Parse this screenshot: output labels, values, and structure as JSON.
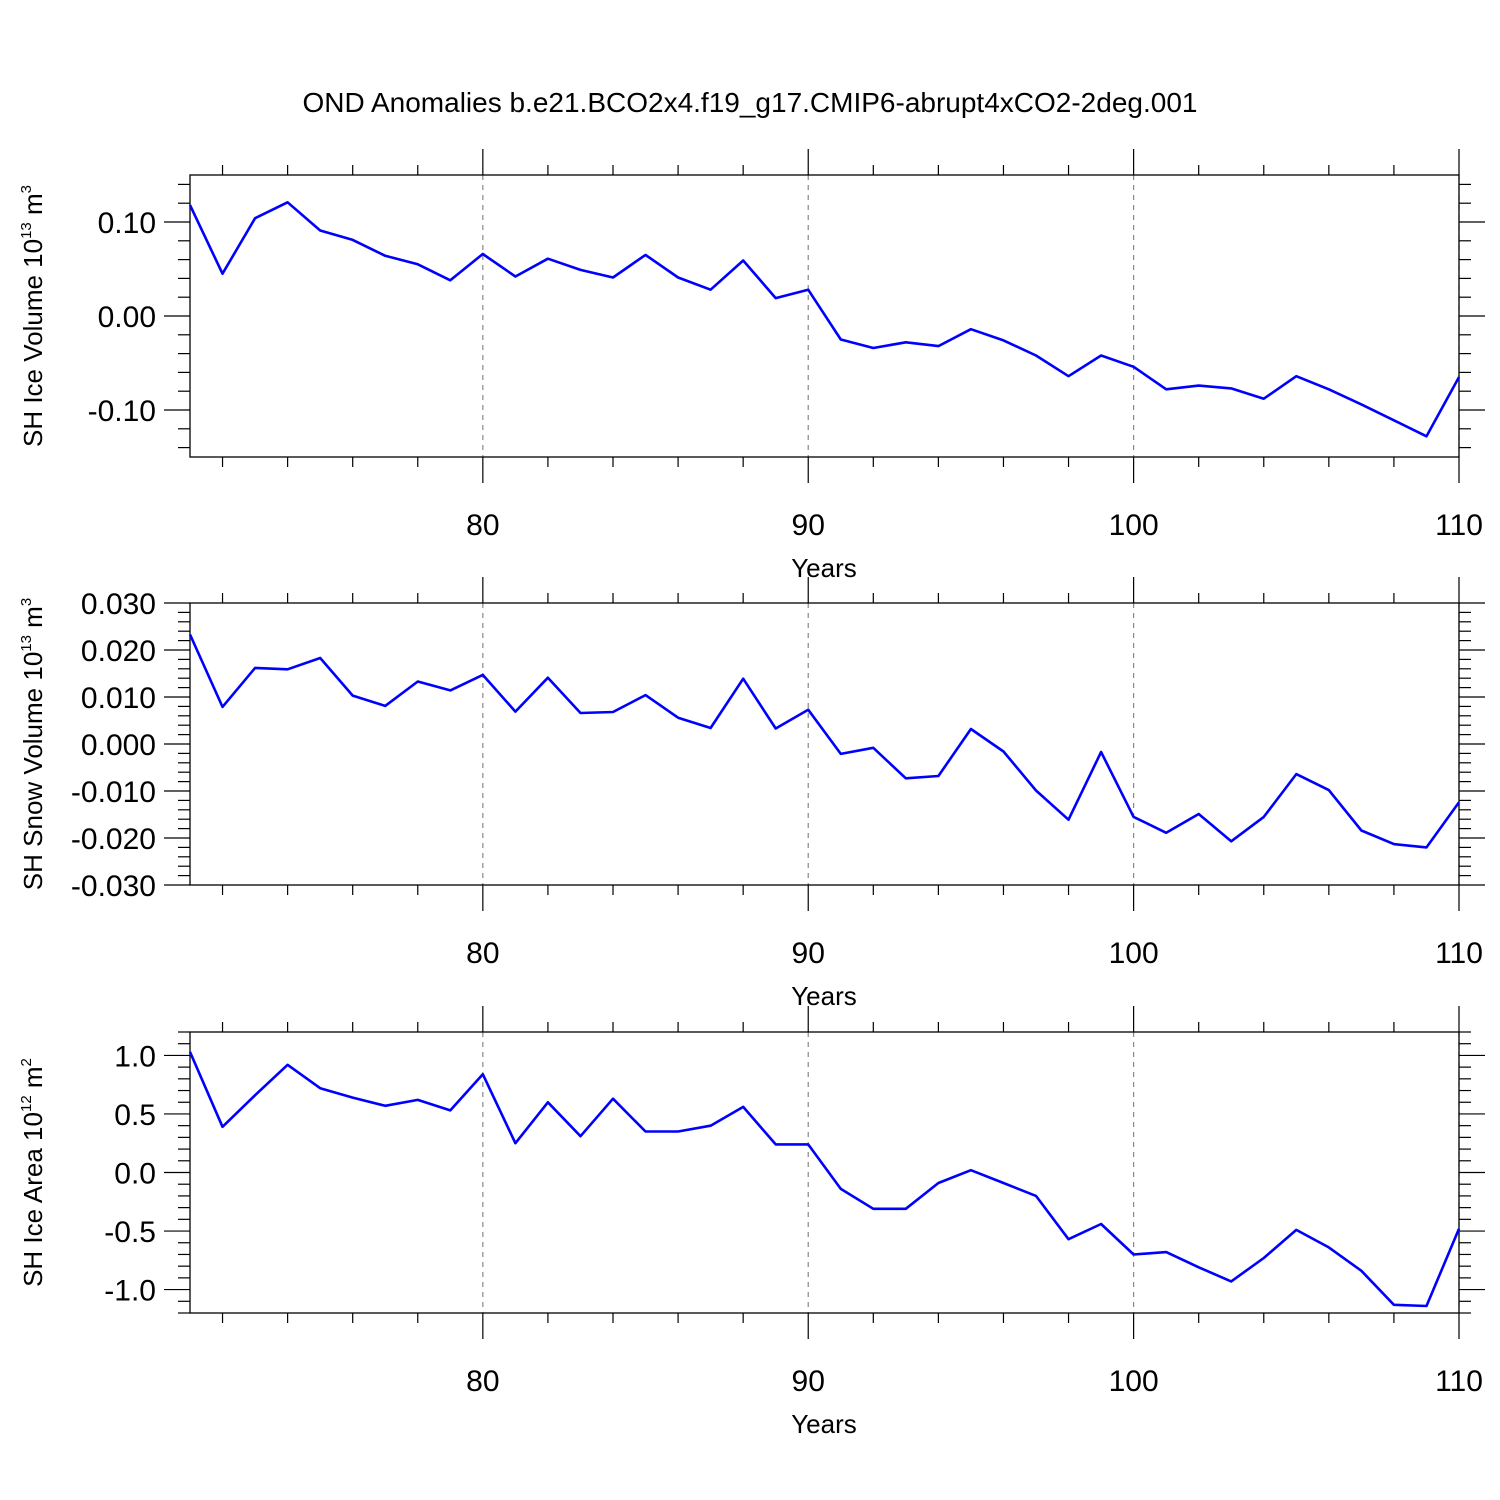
{
  "title": "OND Anomalies b.e21.BCO2x4.f19_g17.CMIP6-abrupt4xCO2-2deg.001",
  "colors": {
    "series": "#0000ff",
    "grid": "#888888",
    "axes": "#000000"
  },
  "chart_data": [
    {
      "type": "line",
      "xlabel": "Years",
      "ylabel": {
        "text": "SH Ice Volume 10",
        "exp": "13",
        "unit": " m",
        "unit_exp": "3"
      },
      "xlim": [
        71,
        110
      ],
      "ylim": [
        -0.15,
        0.15
      ],
      "xticks": [
        80,
        90,
        100,
        110
      ],
      "xtick_labels": [
        "80",
        "90",
        "100",
        "110"
      ],
      "yticks": [
        -0.1,
        0.0,
        0.1
      ],
      "ytick_labels": [
        "-0.10",
        "0.00",
        "0.10"
      ],
      "y_minor_step": 0.02,
      "grid": "x-major dashed",
      "x": [
        71,
        72,
        73,
        74,
        75,
        76,
        77,
        78,
        79,
        80,
        81,
        82,
        83,
        84,
        85,
        86,
        87,
        88,
        89,
        90,
        91,
        92,
        93,
        94,
        95,
        96,
        97,
        98,
        99,
        100,
        101,
        102,
        103,
        104,
        105,
        106,
        107,
        108,
        109,
        110
      ],
      "values": [
        0.118,
        0.045,
        0.104,
        0.121,
        0.091,
        0.081,
        0.064,
        0.055,
        0.038,
        0.066,
        0.042,
        0.061,
        0.049,
        0.041,
        0.065,
        0.041,
        0.028,
        0.059,
        0.019,
        0.028,
        -0.025,
        -0.034,
        -0.028,
        -0.032,
        -0.014,
        -0.026,
        -0.042,
        -0.064,
        -0.042,
        -0.054,
        -0.078,
        -0.074,
        -0.077,
        -0.088,
        -0.064,
        -0.078,
        -0.094,
        -0.111,
        -0.128,
        -0.065
      ]
    },
    {
      "type": "line",
      "xlabel": "Years",
      "ylabel": {
        "text": "SH Snow Volume 10",
        "exp": "13",
        "unit": " m",
        "unit_exp": "3"
      },
      "xlim": [
        71,
        110
      ],
      "ylim": [
        -0.03,
        0.03
      ],
      "xticks": [
        80,
        90,
        100,
        110
      ],
      "xtick_labels": [
        "80",
        "90",
        "100",
        "110"
      ],
      "yticks": [
        -0.03,
        -0.02,
        -0.01,
        0.0,
        0.01,
        0.02,
        0.03
      ],
      "ytick_labels": [
        "-0.030",
        "-0.020",
        "-0.010",
        "0.000",
        "0.010",
        "0.020",
        "0.030"
      ],
      "y_minor_step": 0.002,
      "grid": "x-major dashed",
      "x": [
        71,
        72,
        73,
        74,
        75,
        76,
        77,
        78,
        79,
        80,
        81,
        82,
        83,
        84,
        85,
        86,
        87,
        88,
        89,
        90,
        91,
        92,
        93,
        94,
        95,
        96,
        97,
        98,
        99,
        100,
        101,
        102,
        103,
        104,
        105,
        106,
        107,
        108,
        109,
        110
      ],
      "values": [
        0.0233,
        0.0079,
        0.0162,
        0.0159,
        0.0183,
        0.0103,
        0.0081,
        0.0133,
        0.0114,
        0.0147,
        0.0069,
        0.0141,
        0.0066,
        0.0068,
        0.0104,
        0.0056,
        0.0034,
        0.0139,
        0.0033,
        0.0073,
        -0.0021,
        -0.0008,
        -0.0073,
        -0.0068,
        0.0032,
        -0.0016,
        -0.0099,
        -0.0161,
        -0.0017,
        -0.0155,
        -0.0189,
        -0.0149,
        -0.0207,
        -0.0155,
        -0.0064,
        -0.0098,
        -0.0184,
        -0.0213,
        -0.022,
        -0.0124
      ]
    },
    {
      "type": "line",
      "xlabel": "Years",
      "ylabel": {
        "text": "SH Ice Area 10",
        "exp": "12",
        "unit": " m",
        "unit_exp": "2"
      },
      "xlim": [
        71,
        110
      ],
      "ylim": [
        -1.2,
        1.2
      ],
      "xticks": [
        80,
        90,
        100,
        110
      ],
      "xtick_labels": [
        "80",
        "90",
        "100",
        "110"
      ],
      "yticks": [
        -1.0,
        -0.5,
        0.0,
        0.5,
        1.0
      ],
      "ytick_labels": [
        "-1.0",
        "-0.5",
        "0.0",
        "0.5",
        "1.0"
      ],
      "y_minor_step": 0.1,
      "grid": "x-major dashed",
      "x": [
        71,
        72,
        73,
        74,
        75,
        76,
        77,
        78,
        79,
        80,
        81,
        82,
        83,
        84,
        85,
        86,
        87,
        88,
        89,
        90,
        91,
        92,
        93,
        94,
        95,
        96,
        97,
        98,
        99,
        100,
        101,
        102,
        103,
        104,
        105,
        106,
        107,
        108,
        109,
        110
      ],
      "values": [
        1.03,
        0.39,
        0.66,
        0.92,
        0.72,
        0.64,
        0.57,
        0.62,
        0.53,
        0.84,
        0.25,
        0.6,
        0.31,
        0.63,
        0.35,
        0.35,
        0.4,
        0.56,
        0.24,
        0.24,
        -0.14,
        -0.31,
        -0.31,
        -0.09,
        0.02,
        -0.09,
        -0.2,
        -0.57,
        -0.44,
        -0.7,
        -0.68,
        -0.81,
        -0.93,
        -0.73,
        -0.49,
        -0.64,
        -0.84,
        -1.13,
        -1.14,
        -0.48
      ]
    }
  ]
}
